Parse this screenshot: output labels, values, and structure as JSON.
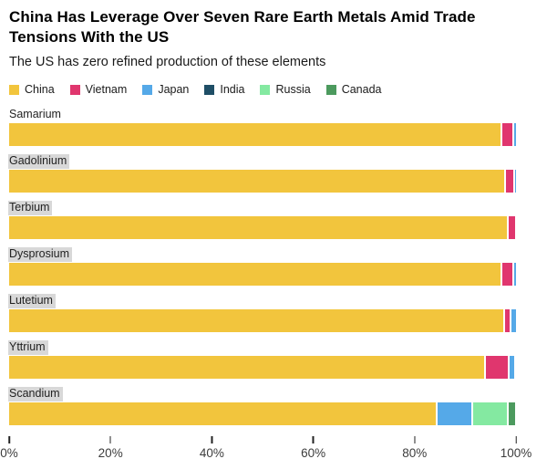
{
  "header": {
    "title_lines": [
      "China Has Leverage Over Seven Rare Earth Metals Amid Trade",
      "Tensions With the US"
    ],
    "title": "China Has Leverage Over Seven Rare Earth Metals Amid Trade Tensions With the US",
    "subtitle": "The US has zero refined production of these elements"
  },
  "colors": {
    "china": "#F2C53D",
    "vietnam": "#E0366E",
    "japan": "#55A9E8",
    "india": "#1F4E66",
    "russia": "#84E9A1",
    "canada": "#4C9A5E",
    "label_highlight": "#D8D8D8"
  },
  "chart_data": {
    "type": "bar",
    "orientation": "horizontal",
    "stacked": true,
    "title": "China Has Leverage Over Seven Rare Earth Metals Amid Trade Tensions With the US",
    "subtitle": "The US has zero refined production of these elements",
    "unit": "percent share of refined production",
    "categories": [
      "Samarium",
      "Gadolinium",
      "Terbium",
      "Dysprosium",
      "Lutetium",
      "Yttrium",
      "Scandium"
    ],
    "series": [
      {
        "name": "China",
        "color": "#F2C53D",
        "values": [
          96.9,
          97.6,
          98.2,
          97.0,
          97.4,
          93.7,
          84.2
        ]
      },
      {
        "name": "Vietnam",
        "color": "#E0366E",
        "values": [
          2.0,
          1.5,
          1.3,
          1.9,
          1.0,
          4.3,
          0
        ]
      },
      {
        "name": "Japan",
        "color": "#55A9E8",
        "values": [
          0.7,
          0.5,
          0,
          0.6,
          1.1,
          0.9,
          6.7
        ]
      },
      {
        "name": "India",
        "color": "#1F4E66",
        "values": [
          0,
          0,
          0,
          0,
          0,
          0.6,
          0
        ]
      },
      {
        "name": "Russia",
        "color": "#84E9A1",
        "values": [
          0,
          0,
          0,
          0,
          0,
          0,
          6.5
        ]
      },
      {
        "name": "Canada",
        "color": "#4C9A5E",
        "values": [
          0,
          0,
          0,
          0,
          0,
          0,
          1.3
        ]
      }
    ],
    "x_ticks": [
      "0%",
      "20%",
      "40%",
      "60%",
      "80%",
      "100%"
    ],
    "xlim": [
      0,
      100
    ],
    "legend_position": "top",
    "grid": false
  }
}
